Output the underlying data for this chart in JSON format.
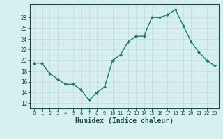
{
  "x": [
    0,
    1,
    2,
    3,
    4,
    5,
    6,
    7,
    8,
    9,
    10,
    11,
    12,
    13,
    14,
    15,
    16,
    17,
    18,
    19,
    20,
    21,
    22,
    23
  ],
  "y": [
    19.5,
    19.5,
    17.5,
    16.5,
    15.5,
    15.5,
    14.5,
    12.5,
    14.0,
    15.0,
    20.0,
    21.0,
    23.5,
    24.5,
    24.5,
    28.0,
    28.0,
    28.5,
    29.5,
    26.5,
    23.5,
    21.5,
    20.0,
    19.0
  ],
  "line_color": "#1a7a6e",
  "marker": "D",
  "marker_size": 2.0,
  "linewidth": 1.0,
  "bg_color": "#d6f0ef",
  "grid_color_major": "#c8dada",
  "grid_color_minor": "#daeaea",
  "tick_color": "#1a4a4a",
  "xlabel": "Humidex (Indice chaleur)",
  "xlabel_fontsize": 7,
  "yticks": [
    12,
    14,
    16,
    18,
    20,
    22,
    24,
    26,
    28
  ],
  "ylim": [
    11.0,
    30.5
  ],
  "xlim": [
    -0.5,
    23.5
  ]
}
